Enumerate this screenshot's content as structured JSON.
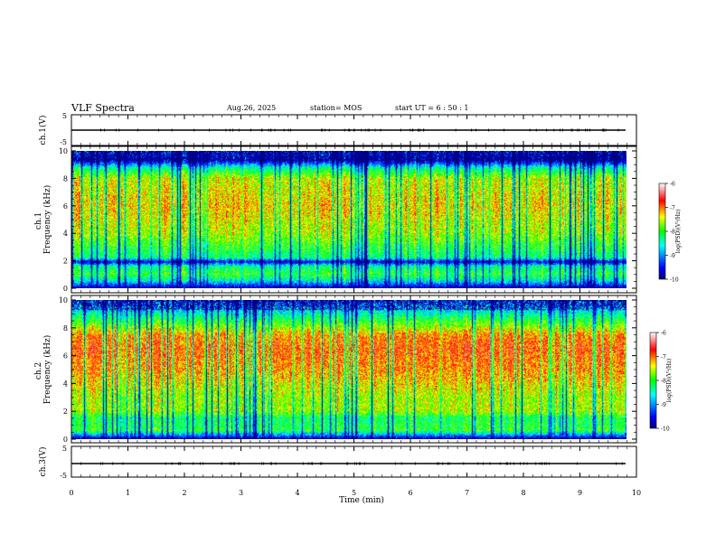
{
  "header": {
    "title": "VLF Spectra",
    "date": "Aug.26, 2025",
    "station": "station= MOS",
    "start": "start  UT  =   6  : 50 : 1"
  },
  "colors": {
    "colormap": [
      "#000080",
      "#0000ff",
      "#00ffff",
      "#00ff00",
      "#ffff00",
      "#ff0000",
      "#ffffff"
    ]
  },
  "chart_data": [
    {
      "type": "line",
      "id": "ch1-waveform",
      "ylabel": "ch.1(V)",
      "ylim": [
        -5,
        5
      ],
      "yticks": [
        "5",
        "-5"
      ],
      "x": [
        0,
        9.82
      ],
      "y": [
        -0.8,
        -0.8
      ]
    },
    {
      "type": "heatmap",
      "id": "ch1-spectrogram",
      "ylabel": "ch.1\nFrequency  (kHz)",
      "ylim": [
        0,
        10
      ],
      "yticks": [
        "0",
        "2",
        "4",
        "6",
        "8",
        "10"
      ],
      "xlim": [
        0,
        9.82
      ],
      "colorbar": {
        "label": "log(PSD)(V²/Hz)",
        "ticks": [
          "-6",
          "-7",
          "-8",
          "-9",
          "-10"
        ],
        "range": [
          -10,
          -6
        ]
      },
      "band_profile_kHz": [
        {
          "f": 0.0,
          "v": -9.8
        },
        {
          "f": 0.5,
          "v": -8.6
        },
        {
          "f": 1.0,
          "v": -8.0
        },
        {
          "f": 1.6,
          "v": -8.4
        },
        {
          "f": 1.9,
          "v": -9.7
        },
        {
          "f": 2.2,
          "v": -8.3
        },
        {
          "f": 4.0,
          "v": -7.6
        },
        {
          "f": 6.0,
          "v": -7.3
        },
        {
          "f": 8.0,
          "v": -7.5
        },
        {
          "f": 8.8,
          "v": -8.4
        },
        {
          "f": 9.3,
          "v": -9.7
        },
        {
          "f": 10.0,
          "v": -9.3
        }
      ]
    },
    {
      "type": "heatmap",
      "id": "ch2-spectrogram",
      "ylabel": "ch.2\nFrequency  (kHz)",
      "ylim": [
        0,
        10
      ],
      "yticks": [
        "0",
        "2",
        "4",
        "6",
        "8",
        "10"
      ],
      "xlim": [
        0,
        9.82
      ],
      "colorbar": {
        "label": "log(PSD)(V²/Hz)",
        "ticks": [
          "-6",
          "-7",
          "-8",
          "-9",
          "-10"
        ],
        "range": [
          -10,
          -6
        ]
      },
      "band_profile_kHz": [
        {
          "f": 0.0,
          "v": -9.8
        },
        {
          "f": 0.6,
          "v": -8.0
        },
        {
          "f": 1.5,
          "v": -8.2
        },
        {
          "f": 2.0,
          "v": -7.6
        },
        {
          "f": 3.0,
          "v": -7.6
        },
        {
          "f": 5.0,
          "v": -7.1
        },
        {
          "f": 6.5,
          "v": -6.9
        },
        {
          "f": 7.5,
          "v": -7.1
        },
        {
          "f": 8.4,
          "v": -7.9
        },
        {
          "f": 9.2,
          "v": -8.6
        },
        {
          "f": 10.0,
          "v": -9.2
        }
      ]
    },
    {
      "type": "line",
      "id": "ch3-waveform",
      "ylabel": "ch.3(V)",
      "ylim": [
        -5,
        5
      ],
      "yticks": [
        "5",
        "-5"
      ],
      "x": [
        0,
        9.82
      ],
      "y": [
        -0.8,
        -0.8
      ]
    }
  ],
  "xaxis": {
    "label": "Time  (min)",
    "xlim": [
      0,
      10
    ],
    "ticks": [
      "0",
      "1",
      "2",
      "3",
      "4",
      "5",
      "6",
      "7",
      "8",
      "9",
      "10"
    ]
  }
}
